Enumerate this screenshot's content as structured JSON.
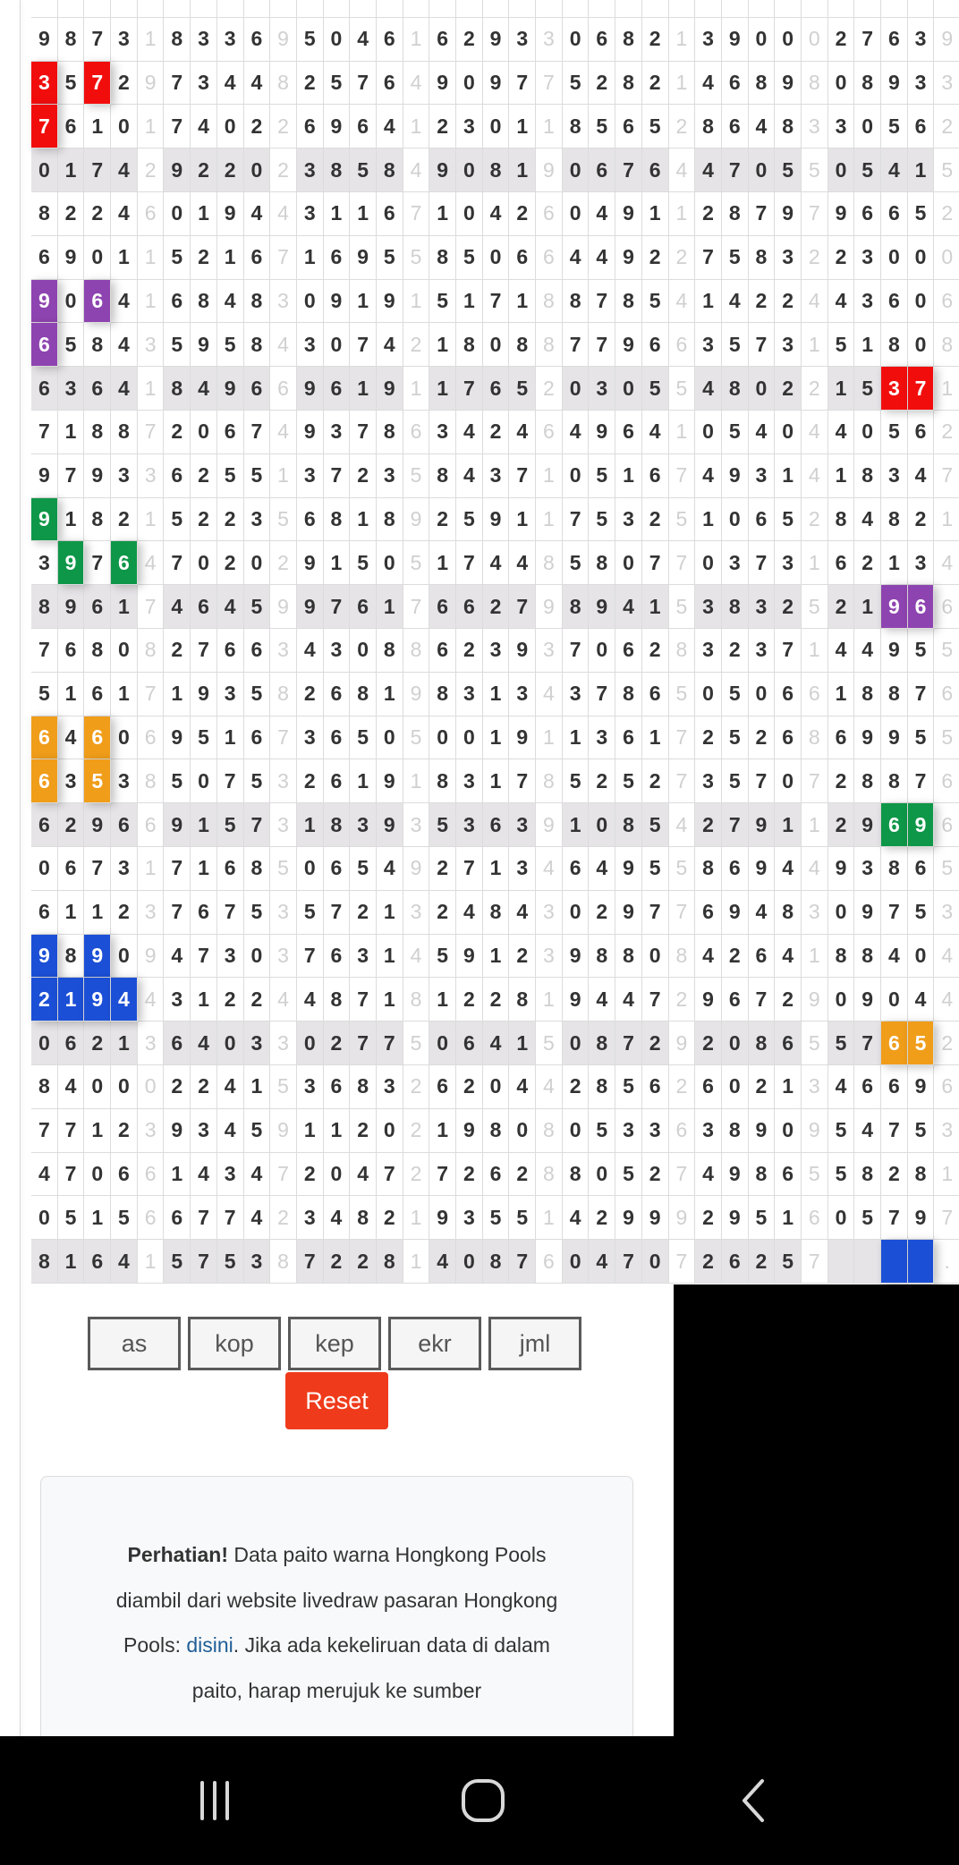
{
  "colors": {
    "red": "#f20d0d",
    "purple": "#8e44b0",
    "green": "#0e9748",
    "orange": "#f09d1a",
    "blue": "#1b4fd6",
    "grey_row": "#e6e4e7"
  },
  "paito": {
    "rows": [
      {
        "groups": [
          "9873",
          "8336",
          "5046",
          "6293",
          "0682",
          "3900",
          "2763"
        ],
        "seps": [
          "1",
          "9",
          "1",
          "3",
          "1",
          "0",
          "9"
        ]
      },
      {
        "groups": [
          "3572",
          "7344",
          "2576",
          "9097",
          "5282",
          "4689",
          "0893"
        ],
        "seps": [
          "9",
          "8",
          "4",
          "7",
          "1",
          "8",
          "3"
        ],
        "hl": [
          [
            0,
            0,
            "red"
          ],
          [
            0,
            2,
            "red"
          ]
        ]
      },
      {
        "groups": [
          "7610",
          "7402",
          "6964",
          "2301",
          "8565",
          "8648",
          "3056"
        ],
        "seps": [
          "1",
          "2",
          "1",
          "1",
          "2",
          "3",
          "2"
        ],
        "hl": [
          [
            0,
            0,
            "red"
          ]
        ]
      },
      {
        "groups": [
          "0174",
          "9220",
          "3858",
          "9081",
          "0676",
          "4705",
          "0541"
        ],
        "seps": [
          "2",
          "2",
          "4",
          "9",
          "4",
          "5",
          "5"
        ],
        "grey": true
      },
      {
        "groups": [
          "8224",
          "0194",
          "3116",
          "1042",
          "0491",
          "2879",
          "9665"
        ],
        "seps": [
          "6",
          "4",
          "7",
          "6",
          "1",
          "7",
          "2"
        ]
      },
      {
        "groups": [
          "6901",
          "5216",
          "1695",
          "8506",
          "4492",
          "7583",
          "2300"
        ],
        "seps": [
          "1",
          "7",
          "5",
          "6",
          "2",
          "2",
          "0"
        ]
      },
      {
        "groups": [
          "9064",
          "6848",
          "0919",
          "5171",
          "8785",
          "1422",
          "4360"
        ],
        "seps": [
          "1",
          "3",
          "1",
          "8",
          "4",
          "4",
          "6"
        ],
        "hl": [
          [
            0,
            0,
            "purple"
          ],
          [
            0,
            2,
            "purple"
          ]
        ]
      },
      {
        "groups": [
          "6584",
          "5958",
          "3074",
          "1808",
          "7796",
          "3573",
          "5180"
        ],
        "seps": [
          "3",
          "4",
          "2",
          "8",
          "6",
          "1",
          "8"
        ],
        "hl": [
          [
            0,
            0,
            "purple"
          ]
        ]
      },
      {
        "groups": [
          "6364",
          "8496",
          "9619",
          "1765",
          "0305",
          "4802",
          "1537"
        ],
        "seps": [
          "1",
          "6",
          "1",
          "2",
          "5",
          "2",
          "1"
        ],
        "grey": true,
        "hl": [
          [
            6,
            2,
            "red"
          ],
          [
            6,
            3,
            "red"
          ]
        ]
      },
      {
        "groups": [
          "7188",
          "2067",
          "9378",
          "3424",
          "4964",
          "0540",
          "4056"
        ],
        "seps": [
          "7",
          "4",
          "6",
          "6",
          "1",
          "4",
          "2"
        ]
      },
      {
        "groups": [
          "9793",
          "6255",
          "3723",
          "8437",
          "0516",
          "4931",
          "1834"
        ],
        "seps": [
          "3",
          "1",
          "5",
          "1",
          "7",
          "4",
          "7"
        ]
      },
      {
        "groups": [
          "9182",
          "5223",
          "6818",
          "2591",
          "7532",
          "1065",
          "8482"
        ],
        "seps": [
          "1",
          "5",
          "9",
          "1",
          "5",
          "2",
          "1"
        ],
        "hl": [
          [
            0,
            0,
            "green"
          ]
        ]
      },
      {
        "groups": [
          "3976",
          "7020",
          "9150",
          "1744",
          "5807",
          "0373",
          "6213"
        ],
        "seps": [
          "4",
          "2",
          "5",
          "8",
          "7",
          "1",
          "4"
        ],
        "hl": [
          [
            0,
            1,
            "green"
          ],
          [
            0,
            3,
            "green"
          ]
        ]
      },
      {
        "groups": [
          "8961",
          "4645",
          "9761",
          "6627",
          "8941",
          "3832",
          "2196"
        ],
        "seps": [
          "7",
          "9",
          "7",
          "9",
          "5",
          "5",
          "6"
        ],
        "grey": true,
        "hl": [
          [
            6,
            2,
            "purple"
          ],
          [
            6,
            3,
            "purple"
          ]
        ]
      },
      {
        "groups": [
          "7680",
          "2766",
          "4308",
          "6239",
          "7062",
          "3237",
          "4495"
        ],
        "seps": [
          "8",
          "3",
          "8",
          "3",
          "8",
          "1",
          "5"
        ]
      },
      {
        "groups": [
          "5161",
          "1935",
          "2681",
          "8313",
          "3786",
          "0506",
          "1887"
        ],
        "seps": [
          "7",
          "8",
          "9",
          "4",
          "5",
          "6",
          "6"
        ]
      },
      {
        "groups": [
          "6460",
          "9516",
          "3650",
          "0019",
          "1361",
          "2526",
          "6995"
        ],
        "seps": [
          "6",
          "7",
          "5",
          "1",
          "7",
          "8",
          "5"
        ],
        "hl": [
          [
            0,
            0,
            "orange"
          ],
          [
            0,
            2,
            "orange"
          ]
        ]
      },
      {
        "groups": [
          "6353",
          "5075",
          "2619",
          "8317",
          "5252",
          "3570",
          "2887"
        ],
        "seps": [
          "8",
          "3",
          "1",
          "8",
          "7",
          "7",
          "6"
        ],
        "hl": [
          [
            0,
            0,
            "orange"
          ],
          [
            0,
            2,
            "orange"
          ]
        ]
      },
      {
        "groups": [
          "6296",
          "9157",
          "1839",
          "5363",
          "1085",
          "2791",
          "2969"
        ],
        "seps": [
          "6",
          "3",
          "3",
          "9",
          "4",
          "1",
          "6"
        ],
        "grey": true,
        "hl": [
          [
            6,
            2,
            "green"
          ],
          [
            6,
            3,
            "green"
          ]
        ]
      },
      {
        "groups": [
          "0673",
          "7168",
          "0654",
          "2713",
          "6495",
          "8694",
          "9386"
        ],
        "seps": [
          "1",
          "5",
          "9",
          "4",
          "5",
          "4",
          "5"
        ]
      },
      {
        "groups": [
          "6112",
          "7675",
          "5721",
          "2484",
          "0297",
          "6948",
          "0975"
        ],
        "seps": [
          "3",
          "3",
          "3",
          "3",
          "7",
          "3",
          "3"
        ]
      },
      {
        "groups": [
          "9890",
          "4730",
          "7631",
          "5912",
          "9880",
          "4264",
          "8840"
        ],
        "seps": [
          "9",
          "3",
          "4",
          "3",
          "8",
          "1",
          "4"
        ],
        "hl": [
          [
            0,
            0,
            "blue"
          ],
          [
            0,
            2,
            "blue"
          ]
        ]
      },
      {
        "groups": [
          "2194",
          "3122",
          "4871",
          "1228",
          "9447",
          "9672",
          "0904"
        ],
        "seps": [
          "4",
          "4",
          "8",
          "1",
          "2",
          "9",
          "4"
        ],
        "hl": [
          [
            0,
            0,
            "blue"
          ],
          [
            0,
            1,
            "blue"
          ],
          [
            0,
            2,
            "blue"
          ],
          [
            0,
            3,
            "blue"
          ]
        ]
      },
      {
        "groups": [
          "0621",
          "6403",
          "0277",
          "0641",
          "0872",
          "2086",
          "5765"
        ],
        "seps": [
          "3",
          "3",
          "5",
          "5",
          "9",
          "5",
          "2"
        ],
        "grey": true,
        "hl": [
          [
            6,
            2,
            "orange"
          ],
          [
            6,
            3,
            "orange"
          ]
        ]
      },
      {
        "groups": [
          "8400",
          "2241",
          "3683",
          "6204",
          "2856",
          "6021",
          "4669"
        ],
        "seps": [
          "0",
          "5",
          "2",
          "4",
          "2",
          "3",
          "6"
        ]
      },
      {
        "groups": [
          "7712",
          "9345",
          "1120",
          "1980",
          "0533",
          "3890",
          "5475"
        ],
        "seps": [
          "3",
          "9",
          "2",
          "8",
          "6",
          "9",
          "3"
        ]
      },
      {
        "groups": [
          "4706",
          "1434",
          "2047",
          "7262",
          "8052",
          "4986",
          "5828"
        ],
        "seps": [
          "6",
          "7",
          "2",
          "8",
          "7",
          "5",
          "1"
        ]
      },
      {
        "groups": [
          "0515",
          "6774",
          "3482",
          "9355",
          "4299",
          "2951",
          "0579"
        ],
        "seps": [
          "6",
          "2",
          "1",
          "1",
          "9",
          "6",
          "7"
        ]
      },
      {
        "groups": [
          "8164",
          "5753",
          "7228",
          "4087",
          "0470",
          "2625",
          "    "
        ],
        "seps": [
          "1",
          "8",
          "1",
          "6",
          "7",
          "7",
          "."
        ],
        "grey": true,
        "hl": [
          [
            6,
            2,
            "blue"
          ],
          [
            6,
            3,
            "blue"
          ]
        ]
      }
    ]
  },
  "buttons": {
    "as": "as",
    "kop": "kop",
    "kep": "kep",
    "ekr": "ekr",
    "jml": "jml",
    "reset": "Reset"
  },
  "notice": {
    "bold": "Perhatian!",
    "text1": " Data paito warna Hongkong Pools diambil dari website livedraw pasaran Hongkong Pools: ",
    "link": "disini",
    "text2": ". Jika ada kekeliruan data di dalam paito, harap merujuk ke sumber"
  },
  "nav": {
    "icons": [
      "recent-apps-icon",
      "home-icon",
      "back-icon"
    ]
  }
}
